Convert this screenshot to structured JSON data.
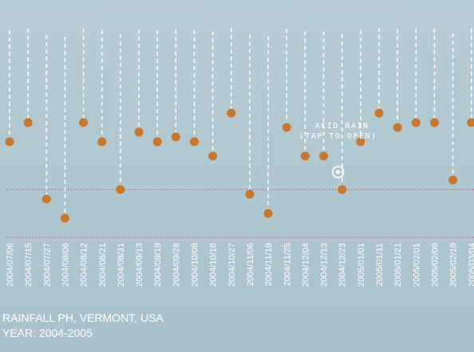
{
  "chart_data": {
    "type": "scatter",
    "title": "RAINFALL PH, VERMONT, USA",
    "subtitle": "YEAR: 2004-2005",
    "x": [
      "2004/07/06",
      "2004/07/15",
      "2004/07/27",
      "2004/08/06",
      "2004/08/12",
      "2004/08/21",
      "2004/08/31",
      "2004/09/13",
      "2004/09/19",
      "2004/09/28",
      "2004/10/08",
      "2004/10/18",
      "2004/10/27",
      "2004/11/06",
      "2004/11/19",
      "2004/11/25",
      "2004/12/04",
      "2004/12/13",
      "2004/12/23",
      "2005/01/01",
      "2005/01/11",
      "2005/01/21",
      "2005/02/01",
      "2005/02/09",
      "2005/02/19",
      "2005/03/04"
    ],
    "values": [
      4.7,
      4.9,
      4.1,
      3.9,
      4.9,
      4.7,
      4.2,
      4.8,
      4.7,
      4.75,
      4.7,
      4.55,
      5.0,
      4.15,
      3.95,
      4.85,
      4.55,
      4.55,
      4.2,
      4.7,
      5.0,
      4.85,
      4.9,
      4.9,
      4.3,
      4.9
    ],
    "ylim": [
      3.5,
      6.0
    ],
    "reference_lines": [
      4.2,
      3.7
    ],
    "annotation": {
      "line1": "ACID RAIN",
      "line2": "(TAP TO OPEN)",
      "at": "2004/12/23"
    },
    "colors": {
      "marker": "#c8772e",
      "stem": "#ffffff",
      "reference": "#c2627a",
      "text": "#ffffff"
    },
    "grid": false
  }
}
